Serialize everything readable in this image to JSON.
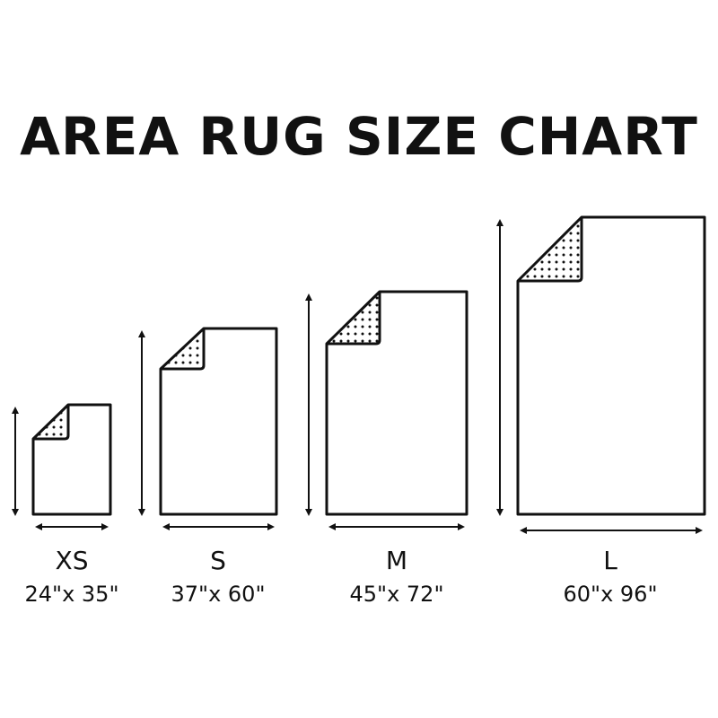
{
  "title": "AREA RUG SIZE CHART",
  "colors": {
    "stroke": "#111111",
    "background": "#ffffff"
  },
  "rugs": [
    {
      "size": "XS",
      "dimensions": "24\"x 35\"",
      "width_in": 24,
      "length_in": 35
    },
    {
      "size": "S",
      "dimensions": "37\"x 60\"",
      "width_in": 37,
      "length_in": 60
    },
    {
      "size": "M",
      "dimensions": "45\"x 72\"",
      "width_in": 45,
      "length_in": 72
    },
    {
      "size": "L",
      "dimensions": "60\"x 96\"",
      "width_in": 60,
      "length_in": 96
    }
  ]
}
